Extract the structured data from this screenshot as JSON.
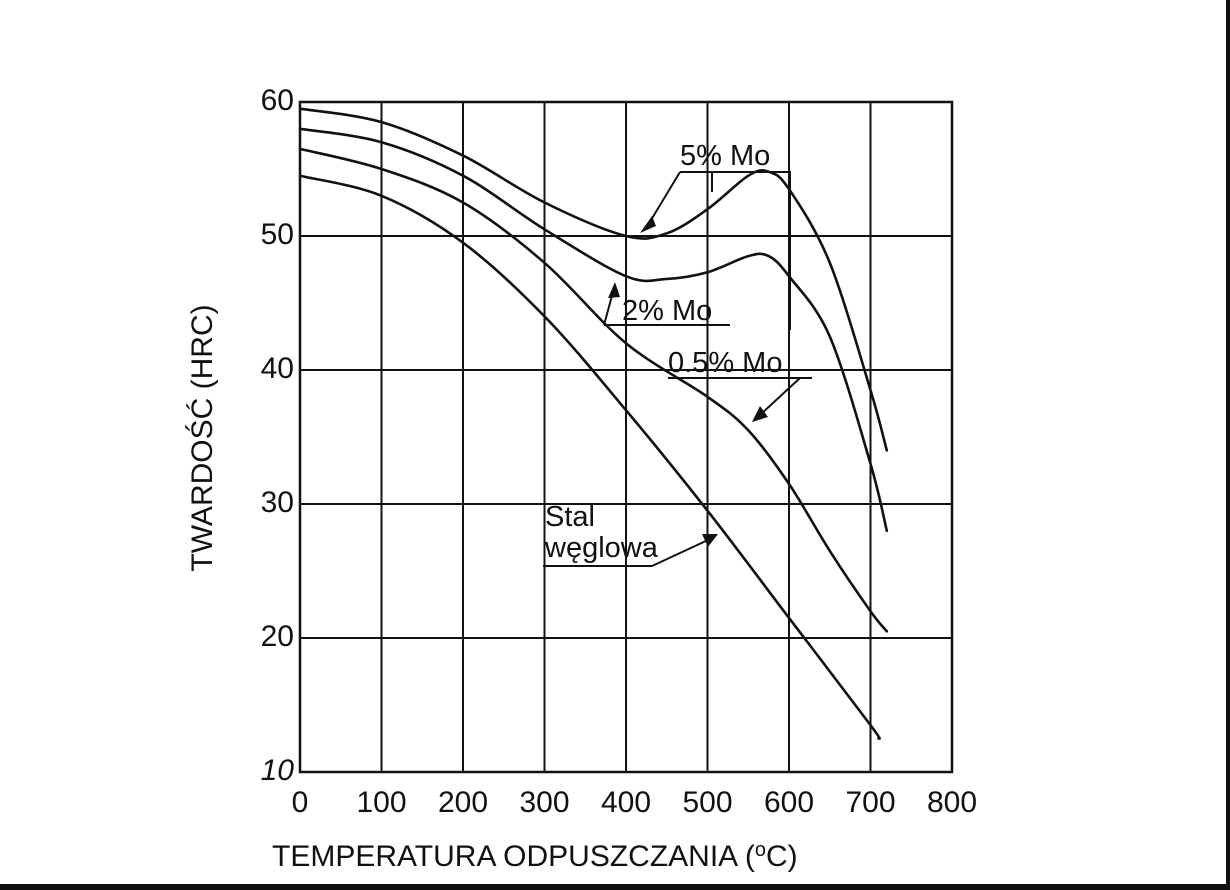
{
  "chart_data": {
    "type": "line",
    "title": "",
    "xlabel": "TEMPERATURA ODPUSZCZANIA  (",
    "xlabel_unit_sup": "o",
    "xlabel_unit_rest": "C)",
    "ylabel": "TWARDOŚĆ  (HRC)",
    "xlim": [
      0,
      800
    ],
    "ylim": [
      10,
      60
    ],
    "xticks": [
      0,
      100,
      200,
      300,
      400,
      500,
      600,
      700,
      800
    ],
    "xtick_labels": [
      "0",
      "100",
      "200",
      "300",
      "400",
      "500",
      "600",
      "700",
      "800"
    ],
    "yticks": [
      10,
      20,
      30,
      40,
      50,
      60
    ],
    "ytick_labels": [
      "10",
      "20",
      "30",
      "40",
      "50",
      "60"
    ],
    "grid": true,
    "series": [
      {
        "name": "5% Mo",
        "label_lines": [
          "5% Mo"
        ],
        "x": [
          0,
          100,
          200,
          300,
          400,
          450,
          500,
          550,
          575,
          600,
          650,
          700,
          720
        ],
        "y": [
          59.5,
          58.5,
          56,
          52.5,
          50,
          50.2,
          52,
          54.5,
          54.8,
          53.5,
          48,
          38.5,
          34
        ]
      },
      {
        "name": "2% Mo",
        "label_lines": [
          "2% Mo"
        ],
        "x": [
          0,
          100,
          200,
          300,
          400,
          450,
          500,
          550,
          575,
          600,
          650,
          700,
          720
        ],
        "y": [
          58,
          57,
          54.5,
          50.5,
          47,
          46.8,
          47.3,
          48.5,
          48.5,
          47,
          42.5,
          33,
          28
        ]
      },
      {
        "name": "0.5% Mo",
        "label_lines": [
          "0.5% Mo"
        ],
        "x": [
          0,
          100,
          200,
          300,
          400,
          500,
          550,
          600,
          650,
          700,
          720
        ],
        "y": [
          56.5,
          55,
          52.5,
          48,
          42,
          38,
          35.5,
          31.5,
          26.5,
          22,
          20.5
        ]
      },
      {
        "name": "Stal węglowa",
        "label_lines": [
          "Stal",
          "węglowa"
        ],
        "x": [
          0,
          100,
          200,
          300,
          400,
          500,
          600,
          700,
          710
        ],
        "y": [
          54.5,
          53,
          49.5,
          44,
          37,
          29.5,
          21.5,
          13.5,
          12.5
        ]
      }
    ]
  }
}
